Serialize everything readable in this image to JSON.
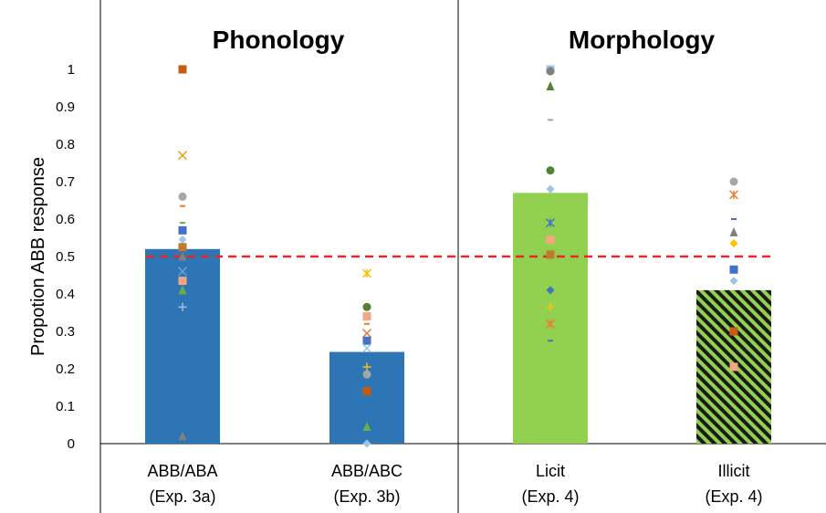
{
  "chart_data": {
    "type": "bar",
    "panels": [
      {
        "title": "Phonology",
        "categories": [
          0,
          1
        ]
      },
      {
        "title": "Morphology",
        "categories": [
          2,
          3
        ]
      }
    ],
    "categories": [
      {
        "line1": "ABB/ABA",
        "line2": "(Exp. 3a)"
      },
      {
        "line1": "ABB/ABC",
        "line2": "(Exp. 3b)"
      },
      {
        "line1": "Licit",
        "line2": "(Exp. 4)"
      },
      {
        "line1": "Illicit",
        "line2": "(Exp. 4)"
      }
    ],
    "values": [
      0.52,
      0.245,
      0.67,
      0.41
    ],
    "bar_colors": [
      "#2e75b6",
      "#2e75b6",
      "#92d050",
      "#92d050"
    ],
    "bar_patterns": [
      "solid",
      "solid",
      "solid",
      "hatched"
    ],
    "hatch_color": "#1a1a1a",
    "ylabel": "Propotion ABB response",
    "xlabel": "",
    "ylim": [
      0,
      1
    ],
    "yticks": [
      "0",
      "0.1",
      "0.2",
      "0.3",
      "0.4",
      "0.5",
      "0.6",
      "0.7",
      "0.8",
      "0.9",
      "1"
    ],
    "reference_line": {
      "y": 0.5,
      "color": "#e8262a",
      "style": "dashed"
    },
    "participant_points": [
      [
        {
          "y": 1.0,
          "shape": "square",
          "color": "#c55a11"
        },
        {
          "y": 0.77,
          "shape": "x",
          "color": "#e6a817"
        },
        {
          "y": 0.66,
          "shape": "circle",
          "color": "#a6a6a6"
        },
        {
          "y": 0.635,
          "shape": "dash",
          "color": "#ed7d31"
        },
        {
          "y": 0.59,
          "shape": "dash",
          "color": "#70ad47"
        },
        {
          "y": 0.57,
          "shape": "square",
          "color": "#4472c4"
        },
        {
          "y": 0.545,
          "shape": "diamond",
          "color": "#9dc3e6"
        },
        {
          "y": 0.525,
          "shape": "square",
          "color": "#c07a2a"
        },
        {
          "y": 0.5,
          "shape": "triangle",
          "color": "#7f7f7f"
        },
        {
          "y": 0.46,
          "shape": "x",
          "color": "#6fa0d8"
        },
        {
          "y": 0.435,
          "shape": "square",
          "color": "#f4a582"
        },
        {
          "y": 0.41,
          "shape": "triangle",
          "color": "#70ad47"
        },
        {
          "y": 0.365,
          "shape": "plus",
          "color": "#9dc3e6"
        },
        {
          "y": 0.02,
          "shape": "triangle",
          "color": "#7f7f7f"
        }
      ],
      [
        {
          "y": 0.455,
          "shape": "star",
          "color": "#ffc000"
        },
        {
          "y": 0.365,
          "shape": "circle",
          "color": "#548235"
        },
        {
          "y": 0.34,
          "shape": "square",
          "color": "#f4a582"
        },
        {
          "y": 0.32,
          "shape": "dash",
          "color": "#ed7d31"
        },
        {
          "y": 0.295,
          "shape": "x",
          "color": "#ed7d31"
        },
        {
          "y": 0.275,
          "shape": "square",
          "color": "#4472c4"
        },
        {
          "y": 0.255,
          "shape": "x",
          "color": "#9dc3e6"
        },
        {
          "y": 0.205,
          "shape": "plus",
          "color": "#ffc000"
        },
        {
          "y": 0.185,
          "shape": "circle",
          "color": "#a6a6a6"
        },
        {
          "y": 0.14,
          "shape": "square",
          "color": "#c55a11"
        },
        {
          "y": 0.045,
          "shape": "triangle",
          "color": "#70ad47"
        },
        {
          "y": 0.0,
          "shape": "diamond",
          "color": "#9dc3e6"
        }
      ],
      [
        {
          "y": 1.0,
          "shape": "square",
          "color": "#9dc3e6"
        },
        {
          "y": 0.995,
          "shape": "circle",
          "color": "#7f7f7f"
        },
        {
          "y": 0.955,
          "shape": "triangle",
          "color": "#548235"
        },
        {
          "y": 0.865,
          "shape": "dash",
          "color": "#a6a6a6"
        },
        {
          "y": 0.73,
          "shape": "circle",
          "color": "#548235"
        },
        {
          "y": 0.68,
          "shape": "diamond",
          "color": "#9dc3e6"
        },
        {
          "y": 0.59,
          "shape": "star",
          "color": "#4472c4"
        },
        {
          "y": 0.545,
          "shape": "square",
          "color": "#f4a582"
        },
        {
          "y": 0.505,
          "shape": "square",
          "color": "#c07a2a"
        },
        {
          "y": 0.41,
          "shape": "diamond",
          "color": "#4472c4"
        },
        {
          "y": 0.365,
          "shape": "plus",
          "color": "#ffc000"
        },
        {
          "y": 0.32,
          "shape": "star",
          "color": "#ed7d31"
        },
        {
          "y": 0.275,
          "shape": "dash",
          "color": "#4472c4"
        }
      ],
      [
        {
          "y": 0.7,
          "shape": "circle",
          "color": "#a6a6a6"
        },
        {
          "y": 0.665,
          "shape": "star",
          "color": "#ed7d31"
        },
        {
          "y": 0.6,
          "shape": "dash",
          "color": "#4472c4"
        },
        {
          "y": 0.565,
          "shape": "triangle",
          "color": "#7f7f7f"
        },
        {
          "y": 0.535,
          "shape": "diamond",
          "color": "#ffc000"
        },
        {
          "y": 0.465,
          "shape": "square",
          "color": "#4472c4"
        },
        {
          "y": 0.435,
          "shape": "diamond",
          "color": "#9dc3e6"
        },
        {
          "y": 0.3,
          "shape": "square",
          "color": "#c55a11"
        },
        {
          "y": 0.205,
          "shape": "square",
          "color": "#f4a582"
        }
      ]
    ]
  }
}
